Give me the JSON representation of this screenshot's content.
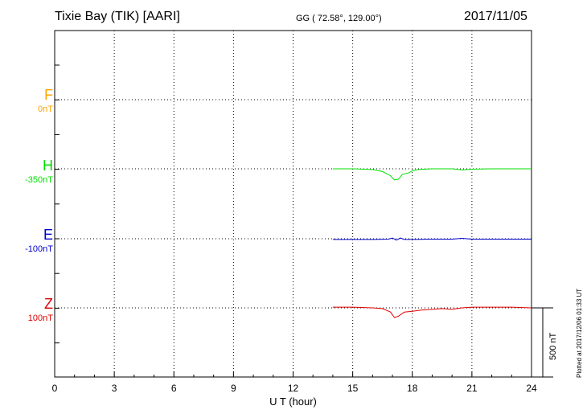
{
  "header": {
    "station": "Tixie Bay (TIK)  [AARI]",
    "coords": "GG ( 72.58°, 129.00°)",
    "date": "2017/11/05"
  },
  "plotted_note": "Plotted at 2017/12/06 01:33 UT",
  "scale_bar": {
    "label": "500 nT",
    "value_nT": 500
  },
  "colors": {
    "F": "#ffa500",
    "H": "#00e000",
    "E": "#0000cc",
    "Z": "#e00000"
  },
  "chart_data": {
    "type": "line",
    "xlabel": "U T (hour)",
    "xlim": [
      0,
      24
    ],
    "x_ticks": [
      0,
      3,
      6,
      9,
      12,
      15,
      18,
      21,
      24
    ],
    "components": [
      {
        "name": "F",
        "baseline_label": "0nT",
        "points": []
      },
      {
        "name": "H",
        "baseline_label": "-350nT",
        "points": [
          [
            14.0,
            0
          ],
          [
            15.0,
            0
          ],
          [
            16.0,
            -5
          ],
          [
            16.5,
            -20
          ],
          [
            16.9,
            -50
          ],
          [
            17.1,
            -80
          ],
          [
            17.3,
            -75
          ],
          [
            17.5,
            -40
          ],
          [
            17.8,
            -30
          ],
          [
            18.0,
            -15
          ],
          [
            18.3,
            -5
          ],
          [
            19.0,
            0
          ],
          [
            20.0,
            0
          ],
          [
            20.5,
            -8
          ],
          [
            21.0,
            -3
          ],
          [
            22.0,
            0
          ],
          [
            23.0,
            0
          ],
          [
            24.0,
            0
          ]
        ]
      },
      {
        "name": "E",
        "baseline_label": "-100nT",
        "points": [
          [
            14.0,
            -5
          ],
          [
            15.0,
            -5
          ],
          [
            16.0,
            -5
          ],
          [
            16.8,
            -3
          ],
          [
            17.0,
            5
          ],
          [
            17.2,
            -10
          ],
          [
            17.4,
            5
          ],
          [
            17.6,
            -5
          ],
          [
            18.0,
            -5
          ],
          [
            19.0,
            -3
          ],
          [
            20.0,
            -3
          ],
          [
            20.5,
            3
          ],
          [
            21.0,
            -3
          ],
          [
            22.0,
            -3
          ],
          [
            23.0,
            -3
          ],
          [
            24.0,
            -3
          ]
        ]
      },
      {
        "name": "Z",
        "baseline_label": "100nT",
        "points": [
          [
            14.0,
            5
          ],
          [
            15.0,
            5
          ],
          [
            16.0,
            0
          ],
          [
            16.5,
            -5
          ],
          [
            16.9,
            -30
          ],
          [
            17.1,
            -70
          ],
          [
            17.3,
            -60
          ],
          [
            17.6,
            -30
          ],
          [
            18.0,
            -25
          ],
          [
            18.5,
            -15
          ],
          [
            19.0,
            -10
          ],
          [
            19.5,
            -5
          ],
          [
            20.0,
            -10
          ],
          [
            20.5,
            0
          ],
          [
            21.0,
            5
          ],
          [
            22.0,
            5
          ],
          [
            23.0,
            5
          ],
          [
            24.0,
            0
          ]
        ]
      }
    ]
  }
}
